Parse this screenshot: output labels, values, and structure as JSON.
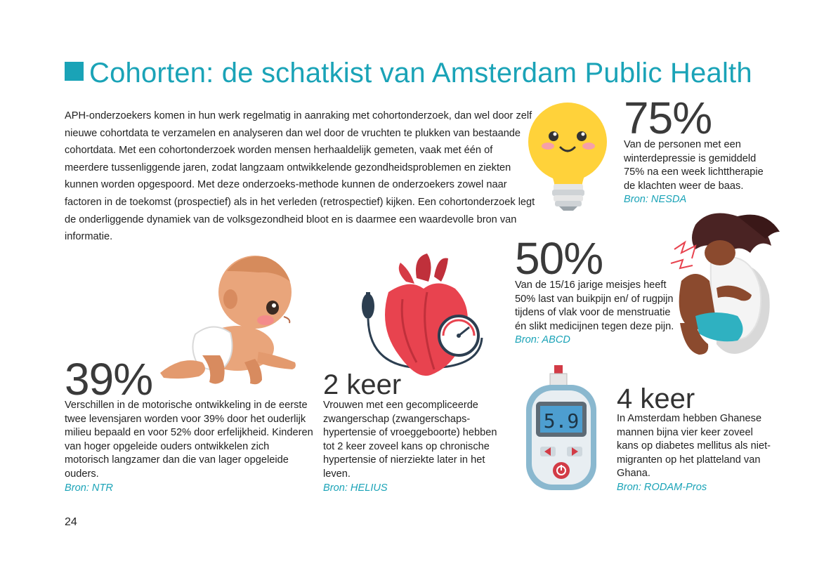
{
  "title": "Cohorten: de schatkist van Amsterdam Public Health",
  "intro": "APH-onderzoekers komen in hun werk regelmatig in aanraking met cohortonderzoek, dan wel door zelf nieuwe cohortdata te verzamelen en analyseren dan wel door de vruchten te plukken van bestaande cohortdata. Met een cohortonderzoek worden mensen herhaaldelijk gemeten, vaak met één of meerdere tussenliggende jaren, zodat langzaam ontwikkelende gezondheidsproblemen en ziekten kunnen worden opgespoord. Met deze onderzoeks-methode kunnen de onderzoekers zowel naar factoren in de toekomst (prospectief) als in het verleden (retrospectief) kijken. Een cohortonderzoek legt de onderliggende dynamiek van de volksgezondheid bloot en is daarmee een waardevolle bron van informatie.",
  "stats": {
    "light": {
      "figure": "75%",
      "text": "Van de personen met een winterdepressie is gemiddeld 75% na een week lichttherapie de klachten weer de baas.",
      "source": "Bron: NESDA",
      "icon": "smiling-lightbulb"
    },
    "girl": {
      "figure": "50%",
      "text": "Van de 15/16 jarige meisjes heeft 50% last van buikpijn en/ of rugpijn tijdens of vlak voor de menstruatie én slikt medicijnen tegen deze pijn.",
      "source": "Bron: ABCD",
      "icon": "girl-with-abdominal-pain"
    },
    "baby": {
      "figure": "39%",
      "text": "Verschillen in de motorische ontwikkeling in de eerste twee levensjaren worden voor 39% door het ouderlijk milieu bepaald en voor 52% door erfelijkheid. Kinderen van hoger opgeleide ouders ontwikkelen zich motorisch langzamer dan die van lager opgeleide ouders.",
      "source": "Bron: NTR",
      "icon": "crawling-baby"
    },
    "heart": {
      "figure": "2 keer",
      "text": "Vrouwen met een gecompliceerde zwangerschap (zwangerschaps-hypertensie of vroeggeboorte) hebben tot 2 keer zoveel kans op chronische hypertensie of nierziekte later in het leven.",
      "source": "Bron: HELIUS",
      "icon": "heart-with-blood-pressure-gauge"
    },
    "glucose": {
      "figure": "4 keer",
      "text": "In Amsterdam hebben Ghanese mannen bijna vier keer zoveel kans op diabetes mellitus als niet-migranten op het platteland van Ghana.",
      "source": "Bron: RODAM-Pros",
      "icon": "glucose-meter",
      "display": "5.9"
    }
  },
  "page_number": "24",
  "colors": {
    "accent": "#1aa3b7",
    "text": "#222222",
    "heart": "#e8434f",
    "bulb": "#ffd23a"
  }
}
